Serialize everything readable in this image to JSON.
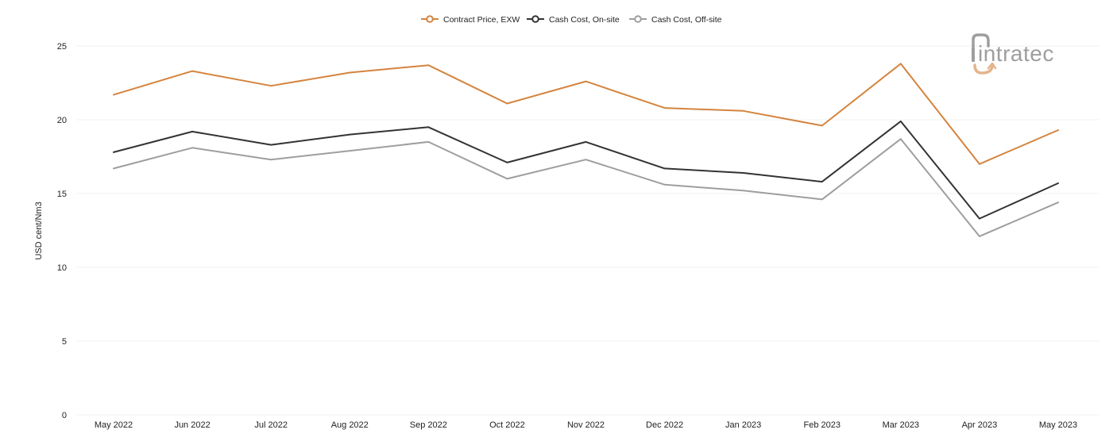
{
  "chart_data": {
    "type": "line",
    "title": "",
    "xlabel": "",
    "ylabel": "USD cent/Nm3",
    "ylim": [
      0,
      25
    ],
    "yticks": [
      0,
      5,
      10,
      15,
      20,
      25
    ],
    "grid": true,
    "legend_position": "top-center",
    "categories": [
      "May 2022",
      "Jun 2022",
      "Jul 2022",
      "Aug 2022",
      "Sep 2022",
      "Oct 2022",
      "Nov 2022",
      "Dec 2022",
      "Jan 2023",
      "Feb 2023",
      "Mar 2023",
      "Apr 2023",
      "May 2023"
    ],
    "series": [
      {
        "name": "Contract Price, EXW",
        "color": "#d4843e",
        "values": [
          21.7,
          23.3,
          22.3,
          23.2,
          23.7,
          21.1,
          22.6,
          20.8,
          20.6,
          19.6,
          23.8,
          17.0,
          19.3
        ]
      },
      {
        "name": "Cash Cost, On-site",
        "color": "#333333",
        "values": [
          17.8,
          19.2,
          18.3,
          19.0,
          19.5,
          17.1,
          18.5,
          16.7,
          16.4,
          15.8,
          19.9,
          13.3,
          15.7
        ]
      },
      {
        "name": "Cash Cost, Off-site",
        "color": "#9e9e9e",
        "values": [
          16.7,
          18.1,
          17.3,
          17.9,
          18.5,
          16.0,
          17.3,
          15.6,
          15.2,
          14.6,
          18.7,
          12.1,
          14.4
        ]
      }
    ]
  },
  "logo": {
    "text": "intratec",
    "brand_gray": "#9e9e9e",
    "brand_orange": "#e3b48c"
  }
}
